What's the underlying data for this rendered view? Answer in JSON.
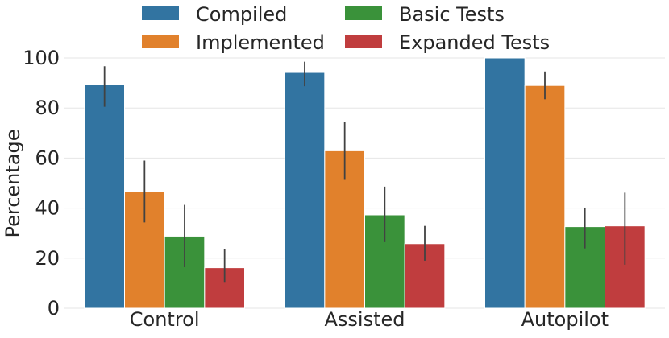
{
  "chart_data": {
    "type": "bar",
    "title": "",
    "xlabel": "",
    "ylabel": "Percentage",
    "ylim": [
      0,
      100
    ],
    "yticks": [
      0,
      20,
      40,
      60,
      80,
      100
    ],
    "grid": true,
    "legend_position": "top-center",
    "categories": [
      "Control",
      "Assisted",
      "Autopilot"
    ],
    "series": [
      {
        "name": "Compiled",
        "color": "#3274a1",
        "values": [
          89.3,
          94.2,
          100.0
        ],
        "err_low": [
          80.5,
          88.7,
          100.0
        ],
        "err_high": [
          96.7,
          98.5,
          100.0
        ]
      },
      {
        "name": "Implemented",
        "color": "#e1812c",
        "values": [
          46.6,
          62.9,
          89.0
        ],
        "err_low": [
          34.3,
          51.3,
          83.5
        ],
        "err_high": [
          59.0,
          74.6,
          94.6
        ]
      },
      {
        "name": "Basic Tests",
        "color": "#3a923a",
        "values": [
          28.8,
          37.3,
          32.6
        ],
        "err_low": [
          16.4,
          26.4,
          23.9
        ],
        "err_high": [
          41.3,
          48.6,
          40.2
        ]
      },
      {
        "name": "Expanded Tests",
        "color": "#c03d3e",
        "values": [
          16.2,
          25.8,
          32.9
        ],
        "err_low": [
          10.2,
          19.0,
          17.4
        ],
        "err_high": [
          23.5,
          32.9,
          46.2
        ]
      }
    ]
  }
}
